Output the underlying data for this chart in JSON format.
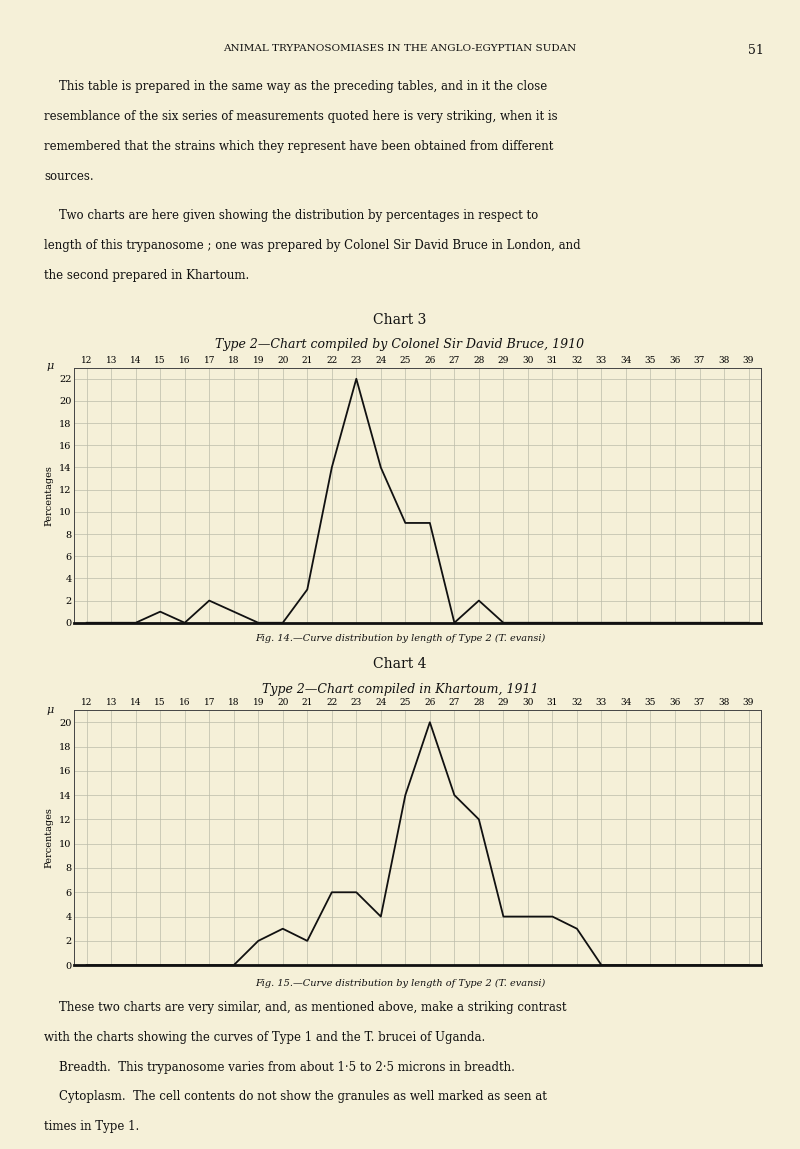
{
  "bg_color": "#f5f0d8",
  "page_title_left": "ANIMAL TRYPANOSOMIASES IN THE ANGLO-EGYPTIAN SUDAN",
  "page_number": "51",
  "para1_lines": [
    "    This table is prepared in the same way as the preceding tables, and in it the close",
    "resemblance of the six series of measurements quoted here is very striking, when it is",
    "remembered that the strains which they represent have been obtained from different",
    "sources."
  ],
  "para2_lines": [
    "    Two charts are here given showing the distribution by percentages in respect to",
    "length of this trypanosome ; one was prepared by Colonel Sir David Bruce in London, and",
    "the second prepared in Khartoum."
  ],
  "chart3_title": "Chart 3",
  "chart3_subtitle": "Type 2—Chart compiled by Colonel Sir David Bruce, 1910",
  "chart3_xlabel": "μ",
  "chart3_ylabel": "Percentages",
  "chart3_caption": "Fig. 14.—Curve distribution by length of Type 2 (T. evansi)",
  "chart3_x": [
    12,
    13,
    14,
    15,
    16,
    17,
    18,
    19,
    20,
    21,
    22,
    23,
    24,
    25,
    26,
    27,
    28,
    29,
    30,
    31,
    32,
    33,
    34,
    35,
    36,
    37,
    38,
    39
  ],
  "chart3_y": [
    0,
    0,
    0,
    1,
    0,
    2,
    1,
    0,
    0,
    3,
    14,
    22,
    14,
    9,
    9,
    0,
    2,
    0,
    0,
    0,
    0,
    0,
    0,
    0,
    0,
    0,
    0,
    0
  ],
  "chart3_yticks": [
    0,
    2,
    4,
    6,
    8,
    10,
    12,
    14,
    16,
    18,
    20,
    22
  ],
  "chart4_title": "Chart 4",
  "chart4_subtitle": "Type 2—Chart compiled in Khartoum, 1911",
  "chart4_xlabel": "μ",
  "chart4_ylabel": "Percentages",
  "chart4_caption": "Fig. 15.—Curve distribution by length of Type 2 (T. evansi)",
  "chart4_x": [
    12,
    13,
    14,
    15,
    16,
    17,
    18,
    19,
    20,
    21,
    22,
    23,
    24,
    25,
    26,
    27,
    28,
    29,
    30,
    31,
    32,
    33,
    34,
    35,
    36,
    37,
    38,
    39
  ],
  "chart4_y": [
    0,
    0,
    0,
    0,
    0,
    0,
    0,
    2,
    3,
    2,
    6,
    6,
    4,
    14,
    20,
    14,
    12,
    4,
    4,
    4,
    3,
    0,
    0,
    0,
    0,
    0,
    0,
    0
  ],
  "chart4_yticks": [
    0,
    2,
    4,
    6,
    8,
    10,
    12,
    14,
    16,
    18,
    20
  ],
  "line_color": "#111111",
  "grid_color": "#bbbbaa",
  "text_color": "#111111",
  "bottom_text_lines": [
    "    These two charts are very similar, and, as mentioned above, make a striking contrast",
    "with the charts showing the curves of Type 1 and the T. brucei of Uganda.",
    "    Breadth.  This trypanosome varies from about 1·5 to 2·5 microns in breadth.",
    "    Cytoplasm.  The cell contents do not show the granules as well marked as seen at",
    "times in Type 1."
  ]
}
